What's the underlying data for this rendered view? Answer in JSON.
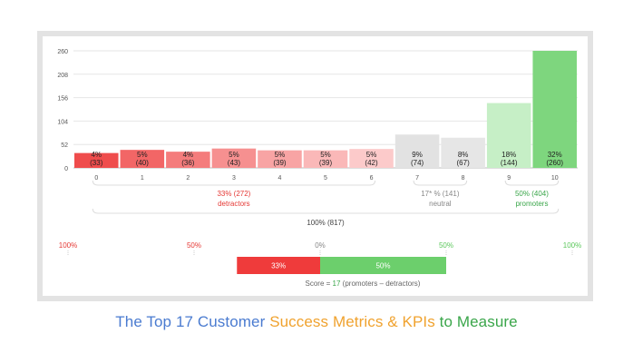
{
  "chart_data": {
    "type": "bar",
    "y_ticks": [
      "0",
      "52",
      "104",
      "156",
      "208",
      "260"
    ],
    "ylim": [
      0,
      260
    ],
    "categories": [
      "0",
      "1",
      "2",
      "3",
      "4",
      "5",
      "6",
      "7",
      "8",
      "9",
      "10"
    ],
    "values": [
      33,
      40,
      36,
      43,
      39,
      39,
      42,
      74,
      67,
      144,
      260
    ],
    "percent_labels": [
      "4%",
      "5%",
      "4%",
      "5%",
      "5%",
      "5%",
      "5%",
      "9%",
      "8%",
      "18%",
      "32%"
    ],
    "count_labels": [
      "(33)",
      "(40)",
      "(36)",
      "(43)",
      "(39)",
      "(39)",
      "(42)",
      "(74)",
      "(67)",
      "(144)",
      "(260)"
    ],
    "bar_colors": [
      "#ef4c4c",
      "#f26666",
      "#f47c7c",
      "#f69090",
      "#f8a4a4",
      "#fab8b8",
      "#fccaca",
      "#e2e2e2",
      "#e6e6e6",
      "#c6efc6",
      "#7ed67e"
    ],
    "groups": [
      {
        "line1": "33% (272)",
        "line2": "detractors",
        "color": "#e53935"
      },
      {
        "line1": "17* % (141)",
        "line2": "neutral",
        "color": "#888888"
      },
      {
        "line1": "50% (404)",
        "line2": "promoters",
        "color": "#3aa64a"
      }
    ],
    "total_label": "100% (817)",
    "scale_labels": [
      {
        "text": "100%",
        "color": "#e53935"
      },
      {
        "text": "50%",
        "color": "#e53935"
      },
      {
        "text": "0%",
        "color": "#888888"
      },
      {
        "text": "50%",
        "color": "#5cc85c"
      },
      {
        "text": "100%",
        "color": "#5cc85c"
      }
    ],
    "nps_bar": {
      "detractors": {
        "value": 33,
        "label": "33%",
        "color": "#ef3b3b"
      },
      "promoters": {
        "value": 50,
        "label": "50%",
        "color": "#6ccf6c"
      }
    },
    "score": {
      "prefix": "Score = ",
      "value": "17",
      "suffix": " (promoters  –  detractors)",
      "value_color": "#3aa64a"
    }
  },
  "caption": {
    "part1": "The Top 17 Customer ",
    "part2": "Success Metrics & KPIs",
    "part3": " to Measure"
  }
}
